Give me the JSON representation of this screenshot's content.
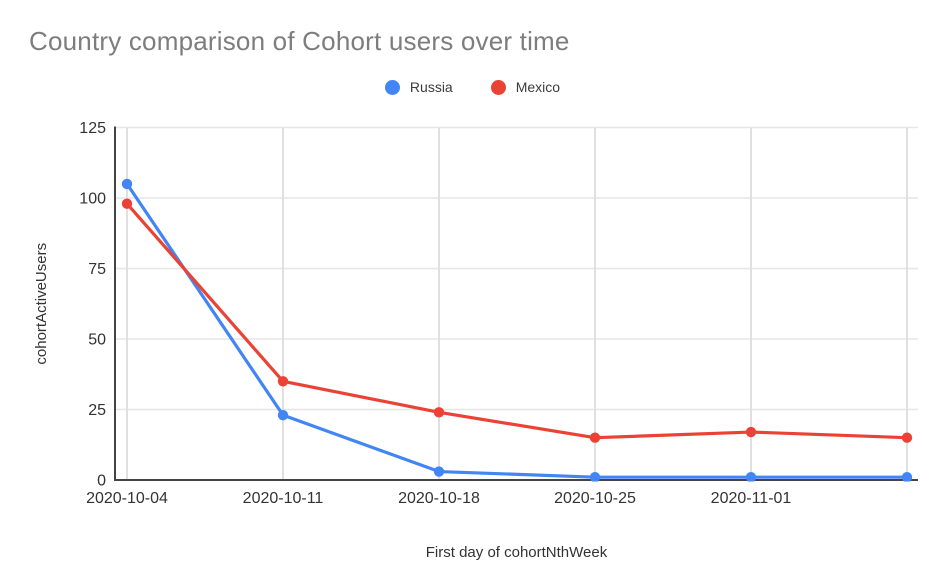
{
  "chart_data": {
    "type": "line",
    "title": "Country comparison of Cohort users over time",
    "xlabel": "First day of cohortNthWeek",
    "ylabel": "cohortActiveUsers",
    "categories": [
      "2020-10-04",
      "2020-10-11",
      "2020-10-18",
      "2020-10-25",
      "2020-11-01",
      ""
    ],
    "series": [
      {
        "name": "Russia",
        "color": "#4285F4",
        "values": [
          105,
          23,
          3,
          1,
          1,
          1
        ]
      },
      {
        "name": "Mexico",
        "color": "#EA4335",
        "values": [
          98,
          35,
          24,
          15,
          17,
          15
        ]
      }
    ],
    "ylim": [
      0,
      125
    ],
    "yticks": [
      0,
      25,
      50,
      75,
      100,
      125
    ],
    "grid": true,
    "legend_position": "top-center",
    "notes": "rightmost data point / vertical gridline has no x tick label"
  }
}
